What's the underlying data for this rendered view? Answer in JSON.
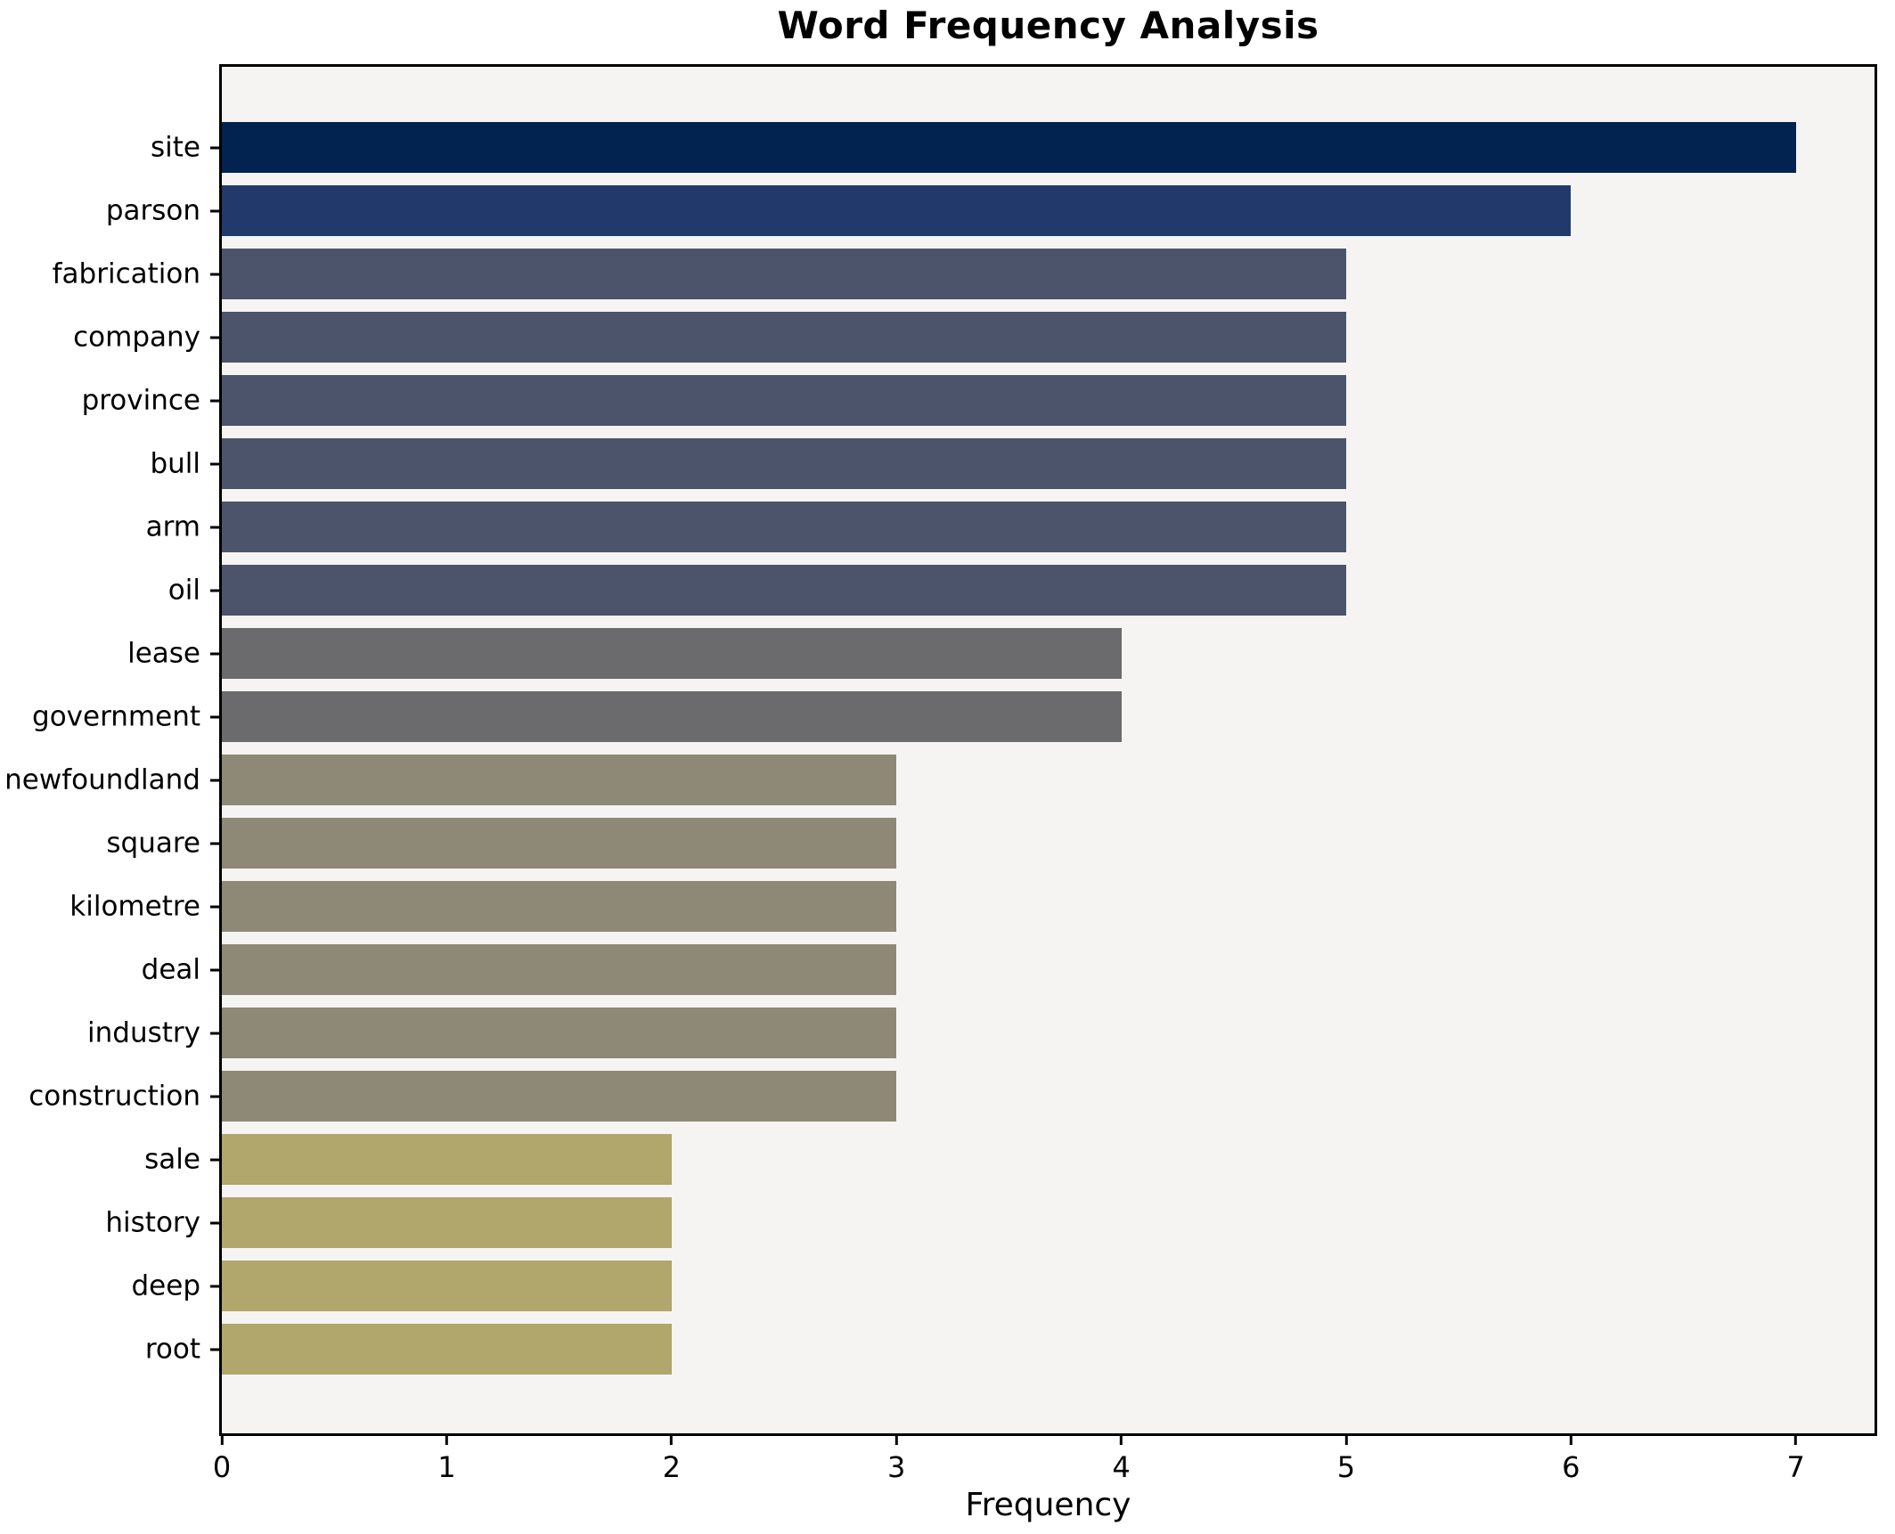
{
  "figure": {
    "background": "#ffffff",
    "plot_background": "#f5f4f2",
    "spine_color": "#000000",
    "text_color": "#000000"
  },
  "chart_data": {
    "type": "bar",
    "orientation": "horizontal",
    "title": "Word Frequency Analysis",
    "xlabel": "Frequency",
    "ylabel": "",
    "categories": [
      "site",
      "parson",
      "fabrication",
      "company",
      "province",
      "bull",
      "arm",
      "oil",
      "lease",
      "government",
      "newfoundland",
      "square",
      "kilometre",
      "deal",
      "industry",
      "construction",
      "sale",
      "history",
      "deep",
      "root"
    ],
    "values": [
      7,
      6,
      5,
      5,
      5,
      5,
      5,
      5,
      4,
      4,
      3,
      3,
      3,
      3,
      3,
      3,
      2,
      2,
      2,
      2
    ],
    "colors": [
      "#022250",
      "#223a6b",
      "#4c546c",
      "#4c546c",
      "#4c546c",
      "#4c546c",
      "#4c546c",
      "#4c546c",
      "#6b6b6e",
      "#6b6b6e",
      "#8e8876",
      "#8e8876",
      "#8e8876",
      "#8e8876",
      "#8e8876",
      "#8e8876",
      "#b1a66b",
      "#b1a66b",
      "#b1a66b",
      "#b1a66b"
    ],
    "xlim": [
      0,
      7.35
    ],
    "xticks": [
      0,
      1,
      2,
      3,
      4,
      5,
      6,
      7
    ],
    "grid": false,
    "legend": null
  }
}
